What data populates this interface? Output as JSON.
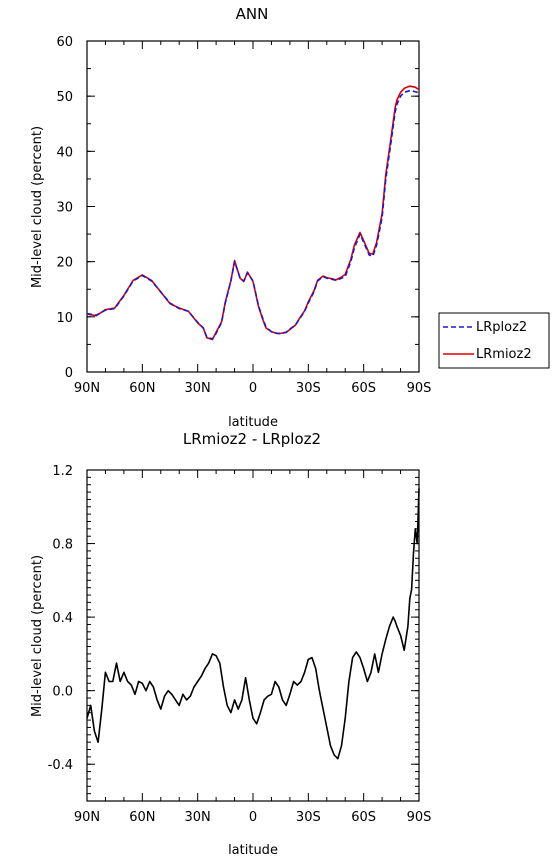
{
  "chart_data": [
    {
      "type": "line",
      "title": "ANN",
      "xlabel": "latitude",
      "ylabel": "Mid-level cloud (percent)",
      "xlim": [
        90,
        -90
      ],
      "ylim": [
        0,
        60
      ],
      "xticks": [
        90,
        60,
        30,
        0,
        -30,
        -60,
        -90
      ],
      "xtick_labels": [
        "90N",
        "60N",
        "30N",
        "0",
        "30S",
        "60S",
        "90S"
      ],
      "yticks": [
        0,
        10,
        20,
        30,
        40,
        50,
        60
      ],
      "ytick_labels": [
        "0",
        "10",
        "20",
        "30",
        "40",
        "50",
        "60"
      ],
      "grid": false,
      "legend": "right",
      "x": [
        90,
        85,
        80,
        75,
        70,
        65,
        60,
        55,
        50,
        45,
        40,
        35,
        30,
        27,
        25,
        22,
        20,
        17,
        15,
        12,
        10,
        7,
        5,
        3,
        0,
        -3,
        -5,
        -7,
        -10,
        -13,
        -15,
        -18,
        -20,
        -23,
        -25,
        -28,
        -30,
        -33,
        -35,
        -38,
        -40,
        -43,
        -45,
        -48,
        -50,
        -53,
        -55,
        -58,
        -60,
        -63,
        -65,
        -67,
        -70,
        -72,
        -75,
        -77,
        -78,
        -80,
        -82,
        -84,
        -85,
        -87,
        -88,
        -89,
        -90
      ],
      "series": [
        {
          "name": "LRploz2",
          "color": "#1a1acc",
          "style": "dashed",
          "values": [
            10.6,
            10.3,
            11.2,
            11.5,
            13.8,
            16.5,
            17.5,
            16.5,
            14.5,
            12.5,
            11.5,
            11.0,
            9.0,
            8.0,
            6.3,
            6.0,
            7.0,
            9.0,
            12.5,
            16.5,
            20.0,
            17.0,
            16.5,
            18.0,
            16.5,
            12.0,
            10.0,
            8.2,
            7.3,
            7.0,
            7.0,
            7.2,
            7.8,
            8.5,
            9.5,
            11.0,
            12.5,
            14.5,
            16.5,
            17.3,
            17.0,
            16.8,
            16.6,
            17.0,
            17.3,
            20.0,
            22.5,
            25.0,
            23.5,
            21.2,
            21.0,
            23.0,
            28.0,
            35.0,
            42.0,
            47.0,
            48.5,
            50.0,
            50.7,
            50.9,
            51.0,
            50.9,
            50.8,
            50.7,
            50.6
          ]
        },
        {
          "name": "LRmioz2",
          "color": "#dd0000",
          "style": "solid",
          "values": [
            10.5,
            10.2,
            11.3,
            11.6,
            13.9,
            16.6,
            17.6,
            16.6,
            14.5,
            12.4,
            11.6,
            11.0,
            8.9,
            8.0,
            6.2,
            5.9,
            7.2,
            9.1,
            12.7,
            16.6,
            20.2,
            17.0,
            16.4,
            18.1,
            16.4,
            11.9,
            9.8,
            8.0,
            7.3,
            7.0,
            7.0,
            7.2,
            7.7,
            8.5,
            9.6,
            11.1,
            12.7,
            14.7,
            16.6,
            17.4,
            17.1,
            16.9,
            16.7,
            17.2,
            17.7,
            20.4,
            23.0,
            25.3,
            23.8,
            21.5,
            21.4,
            23.5,
            28.7,
            35.8,
            42.8,
            47.8,
            49.3,
            50.7,
            51.4,
            51.7,
            51.8,
            51.7,
            51.6,
            51.4,
            51.2
          ]
        }
      ]
    },
    {
      "type": "line",
      "title": "LRmioz2 - LRploz2",
      "xlabel": "latitude",
      "ylabel": "Mid-level cloud (percent)",
      "xlim": [
        90,
        -90
      ],
      "ylim": [
        -0.6,
        1.2
      ],
      "xticks": [
        90,
        60,
        30,
        0,
        -30,
        -60,
        -90
      ],
      "xtick_labels": [
        "90N",
        "60N",
        "30N",
        "0",
        "30S",
        "60S",
        "90S"
      ],
      "yticks": [
        -0.4,
        0.0,
        0.4,
        0.8,
        1.2
      ],
      "ytick_labels": [
        "-0.4",
        "0.0",
        "0.4",
        "0.8",
        "1.2"
      ],
      "grid": false,
      "x": [
        90,
        88,
        86,
        84,
        82,
        80,
        78,
        76,
        74,
        72,
        70,
        68,
        66,
        64,
        62,
        60,
        58,
        56,
        54,
        52,
        50,
        48,
        46,
        44,
        42,
        40,
        38,
        36,
        34,
        32,
        30,
        28,
        26,
        24,
        22,
        20,
        18,
        16,
        14,
        12,
        10,
        8,
        6,
        4,
        2,
        0,
        -2,
        -4,
        -6,
        -8,
        -10,
        -12,
        -14,
        -16,
        -18,
        -20,
        -22,
        -24,
        -26,
        -28,
        -30,
        -32,
        -34,
        -36,
        -38,
        -40,
        -42,
        -44,
        -46,
        -48,
        -50,
        -52,
        -54,
        -56,
        -58,
        -60,
        -62,
        -64,
        -66,
        -68,
        -70,
        -72,
        -74,
        -76,
        -77,
        -78,
        -80,
        -82,
        -84,
        -85,
        -86,
        -87,
        -88,
        -89,
        -90
      ],
      "series": [
        {
          "name": "",
          "color": "#000000",
          "style": "solid",
          "values": [
            -0.15,
            -0.08,
            -0.22,
            -0.28,
            -0.1,
            0.1,
            0.05,
            0.05,
            0.15,
            0.05,
            0.1,
            0.05,
            0.03,
            -0.02,
            0.05,
            0.04,
            0.0,
            0.05,
            0.02,
            -0.05,
            -0.1,
            -0.03,
            0.0,
            -0.02,
            -0.05,
            -0.08,
            -0.02,
            -0.05,
            -0.03,
            0.02,
            0.05,
            0.08,
            0.12,
            0.15,
            0.2,
            0.19,
            0.15,
            0.02,
            -0.08,
            -0.12,
            -0.05,
            -0.1,
            -0.05,
            0.07,
            -0.05,
            -0.15,
            -0.18,
            -0.12,
            -0.05,
            -0.03,
            -0.02,
            0.05,
            0.02,
            -0.05,
            -0.08,
            -0.02,
            0.05,
            0.03,
            0.05,
            0.1,
            0.17,
            0.18,
            0.12,
            0.0,
            -0.1,
            -0.2,
            -0.3,
            -0.35,
            -0.37,
            -0.3,
            -0.15,
            0.05,
            0.18,
            0.21,
            0.18,
            0.12,
            0.05,
            0.1,
            0.2,
            0.1,
            0.2,
            0.28,
            0.35,
            0.4,
            0.38,
            0.35,
            0.3,
            0.22,
            0.35,
            0.5,
            0.55,
            0.75,
            0.88,
            0.8,
            1.1
          ]
        }
      ]
    }
  ]
}
